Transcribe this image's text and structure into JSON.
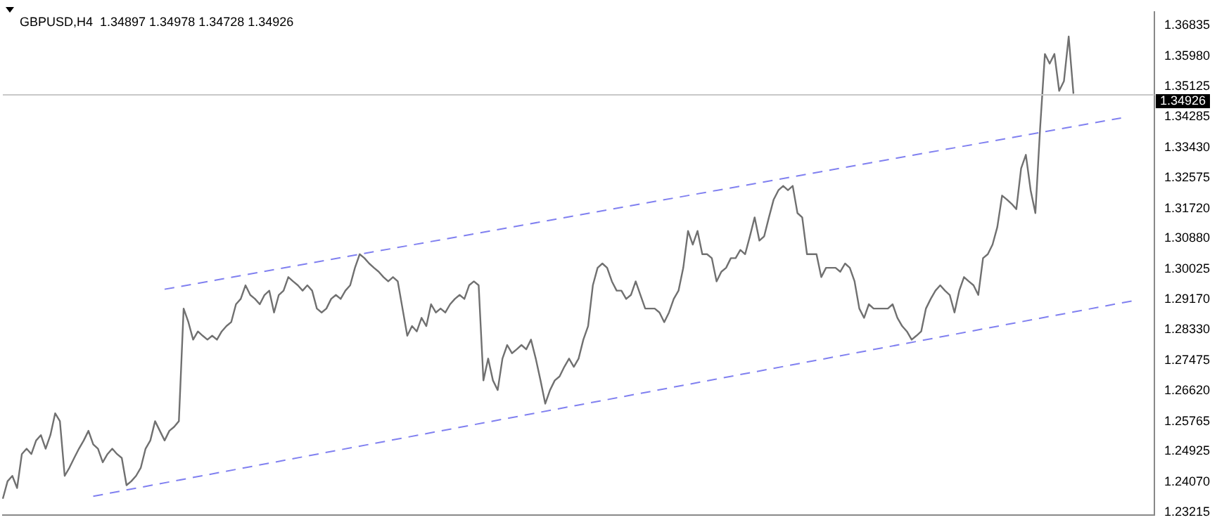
{
  "chart_data": {
    "type": "line",
    "title": "GBPUSD,H4  1.34897 1.34978 1.34728 1.34926",
    "categories": [
      null,
      null,
      null,
      null,
      null,
      null,
      null,
      null,
      null,
      null,
      null,
      null,
      null,
      null,
      null,
      null,
      null,
      null,
      null,
      null,
      null,
      null,
      null,
      null,
      null,
      null,
      null,
      null,
      null,
      null,
      null,
      null,
      null,
      null,
      null,
      null,
      null,
      null,
      null,
      null,
      null,
      null,
      null,
      null,
      null,
      null,
      null,
      null,
      null,
      null,
      null,
      null,
      null,
      null,
      null,
      null,
      null,
      null,
      null,
      null,
      null,
      null,
      null,
      null,
      null,
      null,
      null,
      null,
      null,
      null,
      null,
      null,
      null,
      null,
      null,
      null,
      null,
      null,
      null,
      null,
      null,
      null,
      null,
      null,
      null,
      null,
      null,
      null,
      null,
      null,
      null,
      null,
      null,
      null,
      null,
      null,
      null,
      null,
      null,
      null,
      null,
      null,
      null,
      null,
      null,
      null,
      null,
      null,
      null,
      null,
      null,
      null,
      null,
      null,
      null,
      null,
      null,
      null,
      null,
      null,
      null,
      null,
      null,
      null,
      null,
      null,
      null,
      null,
      null,
      null,
      null,
      null,
      null,
      null,
      null,
      null,
      null,
      null,
      null,
      null,
      null,
      null,
      null,
      null,
      null,
      null,
      null,
      null,
      null,
      null,
      null,
      null,
      null,
      null,
      null,
      null,
      null,
      null,
      null,
      null,
      null,
      null,
      null,
      null,
      null,
      null,
      null,
      null,
      null,
      null,
      null,
      null,
      null,
      null,
      null,
      null,
      null,
      null,
      null,
      null,
      null,
      null,
      null,
      null,
      null,
      null,
      null,
      null,
      null,
      null,
      null,
      null,
      null,
      null,
      null,
      null,
      null,
      null,
      null,
      null,
      null,
      null,
      null,
      null,
      null,
      null,
      null,
      null,
      null,
      null,
      null,
      null,
      null,
      null,
      null,
      null,
      null,
      null,
      null,
      null,
      null,
      null,
      null,
      null,
      null,
      null,
      null,
      null,
      null,
      null,
      null,
      null,
      null,
      null,
      null,
      null,
      null,
      null,
      null,
      null,
      null,
      null,
      null
    ],
    "series": [
      {
        "color": "#707070",
        "values": [
          1.236,
          1.2409,
          1.2424,
          1.239,
          1.2485,
          1.25,
          1.2485,
          1.2523,
          1.2538,
          1.25,
          1.2538,
          1.2599,
          1.2577,
          1.2424,
          1.2447,
          1.2474,
          1.25,
          1.2523,
          1.255,
          1.2512,
          1.25,
          1.2462,
          1.2485,
          1.25,
          1.2485,
          1.2474,
          1.2398,
          1.2409,
          1.2424,
          1.2447,
          1.25,
          1.2523,
          1.2577,
          1.255,
          1.2523,
          1.255,
          1.2561,
          1.2577,
          1.2892,
          1.2854,
          1.2805,
          1.2828,
          1.2816,
          1.2805,
          1.2816,
          1.2805,
          1.2828,
          1.2843,
          1.2854,
          1.2904,
          1.2919,
          1.2957,
          1.293,
          1.2919,
          1.2904,
          1.293,
          1.2942,
          1.2881,
          1.293,
          1.2942,
          1.298,
          1.2968,
          1.2957,
          1.2942,
          1.2957,
          1.2942,
          1.2892,
          1.2881,
          1.2892,
          1.2919,
          1.293,
          1.2919,
          1.2942,
          1.2957,
          1.3006,
          1.3044,
          1.3033,
          1.3018,
          1.3006,
          1.2995,
          1.298,
          1.2968,
          1.298,
          1.2968,
          1.2892,
          1.2816,
          1.2843,
          1.2828,
          1.2866,
          1.2843,
          1.2904,
          1.2881,
          1.2892,
          1.2881,
          1.2904,
          1.2919,
          1.293,
          1.2919,
          1.2957,
          1.2968,
          1.2957,
          1.2691,
          1.2752,
          1.2691,
          1.2664,
          1.2752,
          1.279,
          1.2767,
          1.2778,
          1.279,
          1.2778,
          1.2805,
          1.2752,
          1.2691,
          1.2626,
          1.2664,
          1.2691,
          1.2702,
          1.2729,
          1.2752,
          1.2729,
          1.2752,
          1.2805,
          1.2843,
          1.2957,
          1.3006,
          1.3018,
          1.3006,
          1.2968,
          1.2942,
          1.2942,
          1.2919,
          1.293,
          1.2968,
          1.293,
          1.2892,
          1.2892,
          1.2892,
          1.2881,
          1.2854,
          1.2881,
          1.2919,
          1.2942,
          1.3006,
          1.3109,
          1.3071,
          1.3109,
          1.3044,
          1.3044,
          1.3033,
          1.2968,
          1.2995,
          1.3006,
          1.3033,
          1.3033,
          1.3056,
          1.3044,
          1.3094,
          1.3147,
          1.3082,
          1.3094,
          1.3147,
          1.3197,
          1.3223,
          1.3235,
          1.3223,
          1.3235,
          1.3159,
          1.3147,
          1.3044,
          1.3044,
          1.3044,
          1.298,
          1.3006,
          1.3006,
          1.3006,
          1.2995,
          1.3018,
          1.3006,
          1.2968,
          1.2892,
          1.2866,
          1.2904,
          1.2892,
          1.2892,
          1.2892,
          1.2892,
          1.2904,
          1.2866,
          1.2843,
          1.2828,
          1.2805,
          1.2816,
          1.2828,
          1.2892,
          1.2919,
          1.2942,
          1.2957,
          1.2942,
          1.293,
          1.2881,
          1.2942,
          1.298,
          1.2968,
          1.2957,
          1.293,
          1.3033,
          1.3044,
          1.3071,
          1.312,
          1.3208,
          1.3197,
          1.3185,
          1.317,
          1.3284,
          1.3322,
          1.3223,
          1.3159,
          1.3398,
          1.3604,
          1.3577,
          1.3604,
          1.3501,
          1.3528,
          1.3653,
          1.3493,
          null,
          null,
          null,
          null,
          null,
          null,
          null,
          null,
          null,
          null,
          null,
          null,
          null,
          null,
          null,
          null,
          null
        ]
      },
      {
        "color": "#8080f0",
        "line_style": "dashed",
        "values": [
          null,
          null,
          null,
          null,
          null,
          null,
          null,
          null,
          null,
          null,
          null,
          null,
          null,
          null,
          null,
          null,
          null,
          null,
          null,
          null,
          null,
          null,
          null,
          null,
          null,
          null,
          null,
          null,
          null,
          null,
          null,
          null,
          null,
          null,
          1.2946,
          null,
          null,
          null,
          null,
          null,
          null,
          null,
          null,
          null,
          null,
          null,
          null,
          null,
          null,
          null,
          null,
          null,
          null,
          null,
          null,
          null,
          null,
          null,
          null,
          null,
          null,
          null,
          null,
          null,
          null,
          null,
          null,
          null,
          null,
          null,
          null,
          null,
          null,
          null,
          null,
          null,
          null,
          null,
          null,
          null,
          null,
          null,
          null,
          null,
          null,
          null,
          null,
          null,
          null,
          null,
          null,
          null,
          null,
          null,
          null,
          null,
          null,
          null,
          null,
          null,
          null,
          null,
          null,
          null,
          null,
          null,
          null,
          null,
          null,
          null,
          null,
          null,
          null,
          null,
          null,
          null,
          null,
          null,
          null,
          null,
          null,
          null,
          null,
          null,
          null,
          null,
          null,
          null,
          null,
          null,
          null,
          null,
          null,
          null,
          null,
          null,
          null,
          null,
          null,
          null,
          null,
          null,
          null,
          null,
          null,
          null,
          null,
          null,
          null,
          null,
          null,
          null,
          null,
          null,
          null,
          null,
          null,
          null,
          null,
          null,
          null,
          null,
          null,
          null,
          null,
          null,
          null,
          null,
          null,
          null,
          null,
          null,
          null,
          null,
          null,
          null,
          null,
          null,
          null,
          null,
          null,
          null,
          null,
          null,
          null,
          null,
          null,
          null,
          null,
          null,
          null,
          null,
          null,
          null,
          null,
          null,
          null,
          null,
          null,
          null,
          null,
          null,
          null,
          null,
          null,
          null,
          null,
          null,
          null,
          null,
          null,
          null,
          null,
          null,
          null,
          null,
          null,
          null,
          null,
          null,
          null,
          null,
          null,
          null,
          null,
          null,
          null,
          null,
          null,
          null,
          null,
          null,
          null,
          null,
          null,
          1.3425,
          null,
          null,
          null,
          null,
          null,
          null,
          null
        ]
      },
      {
        "color": "#8080f0",
        "line_style": "dashed",
        "values": [
          null,
          null,
          null,
          null,
          null,
          null,
          null,
          null,
          null,
          null,
          null,
          null,
          null,
          null,
          null,
          null,
          null,
          null,
          null,
          1.2367,
          null,
          null,
          null,
          null,
          null,
          null,
          null,
          null,
          null,
          null,
          null,
          null,
          null,
          null,
          null,
          null,
          null,
          null,
          null,
          null,
          null,
          null,
          null,
          null,
          null,
          null,
          null,
          null,
          null,
          null,
          null,
          null,
          null,
          null,
          null,
          null,
          null,
          null,
          null,
          null,
          null,
          null,
          null,
          null,
          null,
          null,
          null,
          null,
          null,
          null,
          null,
          null,
          null,
          null,
          null,
          null,
          null,
          null,
          null,
          null,
          null,
          null,
          null,
          null,
          null,
          null,
          null,
          null,
          null,
          null,
          null,
          null,
          null,
          null,
          null,
          null,
          null,
          null,
          null,
          null,
          null,
          null,
          null,
          null,
          null,
          null,
          null,
          null,
          null,
          null,
          null,
          null,
          null,
          null,
          null,
          null,
          null,
          null,
          null,
          null,
          null,
          null,
          null,
          null,
          null,
          null,
          null,
          null,
          null,
          null,
          null,
          null,
          null,
          null,
          null,
          null,
          null,
          null,
          null,
          null,
          null,
          null,
          null,
          null,
          null,
          null,
          null,
          null,
          null,
          null,
          null,
          null,
          null,
          null,
          null,
          null,
          null,
          null,
          null,
          null,
          null,
          null,
          null,
          null,
          null,
          null,
          null,
          null,
          null,
          null,
          null,
          null,
          null,
          null,
          null,
          null,
          null,
          null,
          null,
          null,
          null,
          null,
          null,
          null,
          null,
          null,
          null,
          null,
          null,
          null,
          null,
          null,
          null,
          null,
          null,
          null,
          null,
          null,
          null,
          null,
          null,
          null,
          null,
          null,
          null,
          null,
          null,
          null,
          null,
          null,
          null,
          null,
          null,
          null,
          null,
          null,
          null,
          null,
          null,
          null,
          null,
          null,
          null,
          null,
          null,
          null,
          null,
          null,
          null,
          null,
          null,
          null,
          null,
          null,
          null,
          null,
          null,
          null,
          1.2915,
          null,
          null,
          null,
          null
        ]
      }
    ],
    "ylim": [
      1.2314,
      1.3722
    ],
    "yticks": [
      1.23215,
      {
        "value": 1.2407,
        "label": "1.24070"
      },
      1.24925,
      1.25765,
      {
        "value": 1.2662,
        "label": "1.26620"
      },
      1.27475,
      {
        "value": 1.2833,
        "label": "1.28330"
      },
      {
        "value": 1.2917,
        "label": "1.29170"
      },
      1.30025,
      {
        "value": 1.3088,
        "label": "1.30880"
      },
      {
        "value": 1.3172,
        "label": "1.31720"
      },
      1.32575,
      {
        "value": 1.3343,
        "label": "1.33430"
      },
      1.34285,
      1.35125,
      {
        "value": 1.3598,
        "label": "1.35980"
      },
      1.36835
    ],
    "ref_lines": [
      {
        "axis": "y",
        "value": 1.34926,
        "label": "1.34926",
        "color": "#c8c8c8"
      }
    ],
    "tick_labels": "y",
    "legend": false
  }
}
